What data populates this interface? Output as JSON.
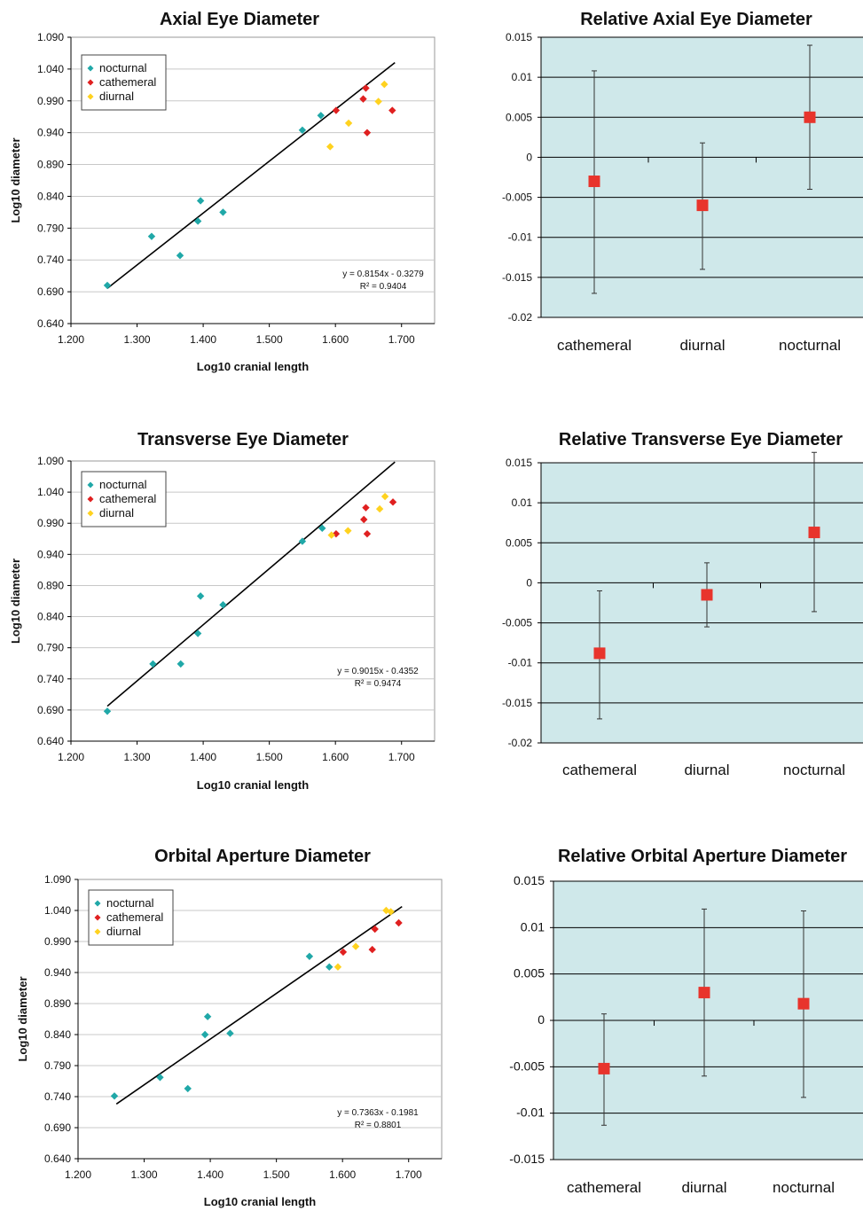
{
  "chart_data": [
    {
      "type": "scatter",
      "title": "Axial Eye Diameter",
      "xlabel": "Log10 cranial length",
      "ylabel": "Log10 diameter",
      "xlim": [
        1.2,
        1.75
      ],
      "ylim": [
        0.64,
        1.09
      ],
      "xticks": [
        "1.200",
        "1.300",
        "1.400",
        "1.500",
        "1.600",
        "1.700"
      ],
      "yticks": [
        "0.640",
        "0.690",
        "0.740",
        "0.790",
        "0.840",
        "0.890",
        "0.940",
        "0.990",
        "1.040",
        "1.090"
      ],
      "grid": "horizontal",
      "legend_position": "top-left",
      "series": [
        {
          "name": "nocturnal",
          "color": "#20a8a8",
          "points": [
            [
              1.255,
              0.7
            ],
            [
              1.322,
              0.777
            ],
            [
              1.365,
              0.747
            ],
            [
              1.392,
              0.801
            ],
            [
              1.396,
              0.833
            ],
            [
              1.43,
              0.815
            ],
            [
              1.55,
              0.944
            ],
            [
              1.578,
              0.967
            ]
          ]
        },
        {
          "name": "cathemeral",
          "color": "#e02020",
          "points": [
            [
              1.601,
              0.975
            ],
            [
              1.642,
              0.993
            ],
            [
              1.646,
              1.01
            ],
            [
              1.648,
              0.94
            ],
            [
              1.686,
              0.975
            ]
          ]
        },
        {
          "name": "diurnal",
          "color": "#ffd21f",
          "points": [
            [
              1.592,
              0.918
            ],
            [
              1.62,
              0.955
            ],
            [
              1.665,
              0.989
            ],
            [
              1.674,
              1.016
            ]
          ]
        }
      ],
      "trendline": {
        "x": [
          1.255,
          1.69
        ],
        "equation": "y = 0.8154x - 0.3279",
        "r2": "R² = 0.9404"
      }
    },
    {
      "type": "errorbar",
      "title": "Relative Axial Eye Diameter",
      "categories": [
        "cathemeral",
        "diurnal",
        "nocturnal"
      ],
      "values": [
        -0.003,
        -0.006,
        0.005
      ],
      "lower": [
        -0.017,
        -0.014,
        -0.004
      ],
      "upper": [
        0.0108,
        0.0018,
        0.014
      ],
      "ylim": [
        -0.02,
        0.015
      ],
      "yticks": [
        "0.015",
        "0.01",
        "0.005",
        "0",
        "-0.005",
        "-0.01",
        "-0.015",
        "-0.02"
      ],
      "grid": "horizontal",
      "background": "#cfe8ea",
      "marker_color": "#e8342c"
    },
    {
      "type": "scatter",
      "title": "Transverse Eye Diameter",
      "xlabel": "Log10 cranial length",
      "ylabel": "Log10 diameter",
      "xlim": [
        1.2,
        1.75
      ],
      "ylim": [
        0.64,
        1.09
      ],
      "xticks": [
        "1.200",
        "1.300",
        "1.400",
        "1.500",
        "1.600",
        "1.700"
      ],
      "yticks": [
        "0.640",
        "0.690",
        "0.740",
        "0.790",
        "0.840",
        "0.890",
        "0.940",
        "0.990",
        "1.040",
        "1.090"
      ],
      "grid": "horizontal",
      "legend_position": "top-left",
      "series": [
        {
          "name": "nocturnal",
          "color": "#20a8a8",
          "points": [
            [
              1.255,
              0.688
            ],
            [
              1.324,
              0.764
            ],
            [
              1.366,
              0.764
            ],
            [
              1.392,
              0.813
            ],
            [
              1.396,
              0.873
            ],
            [
              1.43,
              0.859
            ],
            [
              1.55,
              0.961
            ],
            [
              1.58,
              0.982
            ]
          ]
        },
        {
          "name": "cathemeral",
          "color": "#e02020",
          "points": [
            [
              1.601,
              0.973
            ],
            [
              1.643,
              0.996
            ],
            [
              1.646,
              1.015
            ],
            [
              1.648,
              0.973
            ],
            [
              1.687,
              1.024
            ]
          ]
        },
        {
          "name": "diurnal",
          "color": "#ffd21f",
          "points": [
            [
              1.594,
              0.971
            ],
            [
              1.619,
              0.978
            ],
            [
              1.667,
              1.013
            ],
            [
              1.675,
              1.033
            ]
          ]
        }
      ],
      "trendline": {
        "x": [
          1.255,
          1.69
        ],
        "equation": "y = 0.9015x - 0.4352",
        "r2": "R² = 0.9474"
      }
    },
    {
      "type": "errorbar",
      "title": "Relative Transverse Eye Diameter",
      "categories": [
        "cathemeral",
        "diurnal",
        "nocturnal"
      ],
      "values": [
        -0.0088,
        -0.0015,
        0.0063
      ],
      "lower": [
        -0.017,
        -0.0055,
        -0.0036
      ],
      "upper": [
        -0.001,
        0.0025,
        0.0163
      ],
      "ylim": [
        -0.02,
        0.015
      ],
      "yticks": [
        "0.015",
        "0.01",
        "0.005",
        "0",
        "-0.005",
        "-0.01",
        "-0.015",
        "-0.02"
      ],
      "grid": "horizontal",
      "background": "#cfe8ea",
      "marker_color": "#e8342c"
    },
    {
      "type": "scatter",
      "title": "Orbital Aperture Diameter",
      "xlabel": "Log10 cranial length",
      "ylabel": "Log10 diameter",
      "xlim": [
        1.2,
        1.75
      ],
      "ylim": [
        0.64,
        1.09
      ],
      "xticks": [
        "1.200",
        "1.300",
        "1.400",
        "1.500",
        "1.600",
        "1.700"
      ],
      "yticks": [
        "0.640",
        "0.690",
        "0.740",
        "0.790",
        "0.840",
        "0.890",
        "0.940",
        "0.990",
        "1.040",
        "1.090"
      ],
      "grid": "horizontal",
      "legend_position": "top-left",
      "series": [
        {
          "name": "nocturnal",
          "color": "#20a8a8",
          "points": [
            [
              1.255,
              0.741
            ],
            [
              1.324,
              0.771
            ],
            [
              1.366,
              0.753
            ],
            [
              1.392,
              0.84
            ],
            [
              1.396,
              0.869
            ],
            [
              1.43,
              0.842
            ],
            [
              1.55,
              0.966
            ],
            [
              1.58,
              0.949
            ]
          ]
        },
        {
          "name": "cathemeral",
          "color": "#e02020",
          "points": [
            [
              1.601,
              0.973
            ],
            [
              1.645,
              0.977
            ],
            [
              1.649,
              1.01
            ],
            [
              1.685,
              1.02
            ]
          ]
        },
        {
          "name": "diurnal",
          "color": "#ffd21f",
          "points": [
            [
              1.593,
              0.949
            ],
            [
              1.62,
              0.982
            ],
            [
              1.666,
              1.04
            ],
            [
              1.673,
              1.038
            ]
          ]
        }
      ],
      "trendline": {
        "x": [
          1.258,
          1.69
        ],
        "equation": "y = 0.7363x - 0.1981",
        "r2": "R² = 0.8801"
      }
    },
    {
      "type": "errorbar",
      "title": "Relative Orbital Aperture  Diameter",
      "categories": [
        "cathemeral",
        "diurnal",
        "nocturnal"
      ],
      "values": [
        -0.0052,
        0.003,
        0.0018
      ],
      "lower": [
        -0.0113,
        -0.006,
        -0.0083
      ],
      "upper": [
        0.0007,
        0.012,
        0.0118
      ],
      "ylim": [
        -0.015,
        0.015
      ],
      "yticks": [
        "0.015",
        "0.01",
        "0.005",
        "0",
        "-0.005",
        "-0.01",
        "-0.015"
      ],
      "grid": "horizontal",
      "background": "#cfe8ea",
      "marker_color": "#e8342c"
    }
  ]
}
